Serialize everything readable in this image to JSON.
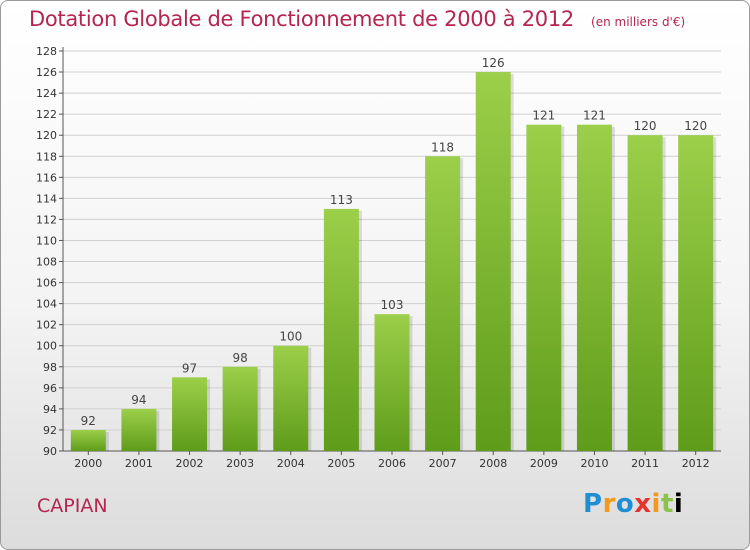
{
  "title": "Dotation Globale de Fonctionnement de 2000 à 2012",
  "unit": "(en milliers d'€)",
  "commune": "CAPIAN",
  "brand": [
    "P",
    "r",
    "o",
    "x",
    "i",
    "t",
    "i"
  ],
  "colors": {
    "bar_top": "#9ccf4a",
    "bar_bottom": "#5e9c1a",
    "title": "#b5254f",
    "grid": "#d0d0d0"
  },
  "chart_data": {
    "type": "bar",
    "title": "Dotation Globale de Fonctionnement de 2000 à 2012",
    "xlabel": "",
    "ylabel": "",
    "ylim": [
      90,
      128
    ],
    "yticks": [
      90,
      92,
      94,
      96,
      98,
      100,
      102,
      104,
      106,
      108,
      110,
      112,
      114,
      116,
      118,
      120,
      122,
      124,
      126,
      128
    ],
    "grid": true,
    "categories": [
      "2000",
      "2001",
      "2002",
      "2003",
      "2004",
      "2005",
      "2006",
      "2007",
      "2008",
      "2009",
      "2010",
      "2011",
      "2012"
    ],
    "values": [
      92,
      94,
      97,
      98,
      100,
      113,
      103,
      118,
      126,
      121,
      121,
      120,
      120
    ]
  }
}
